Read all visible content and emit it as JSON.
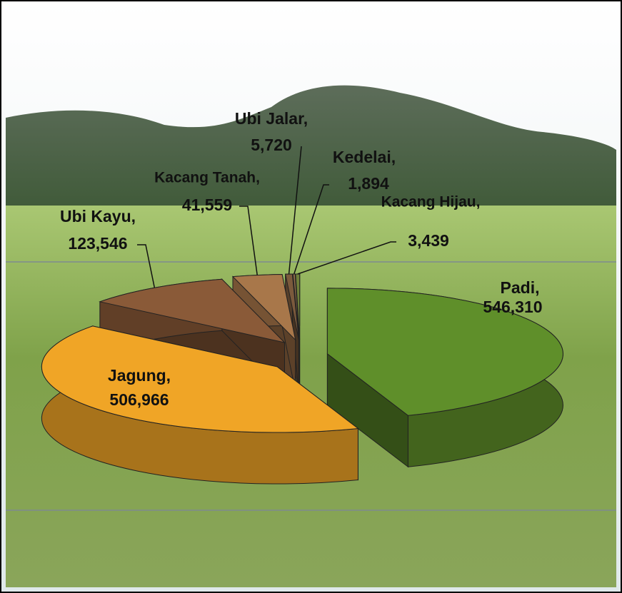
{
  "chart_data": {
    "type": "pie",
    "categories": [
      "Padi,",
      "Jagung,",
      "Ubi Kayu,",
      "Kacang Tanah,",
      "Ubi Jalar,",
      "Kedelai,",
      "Kacang Hijau,"
    ],
    "values": [
      546310,
      506966,
      123546,
      41559,
      5720,
      1894,
      3439
    ],
    "value_labels": [
      "546,310",
      "506,966",
      "123,546",
      "41,559",
      "5,720",
      "1,894",
      "3,439"
    ],
    "colors": [
      "#5f8f2a",
      "#f0a526",
      "#8a5a38",
      "#a8774a",
      "#7b5a3c",
      "#8c6a48",
      "#6f7f3a"
    ]
  }
}
